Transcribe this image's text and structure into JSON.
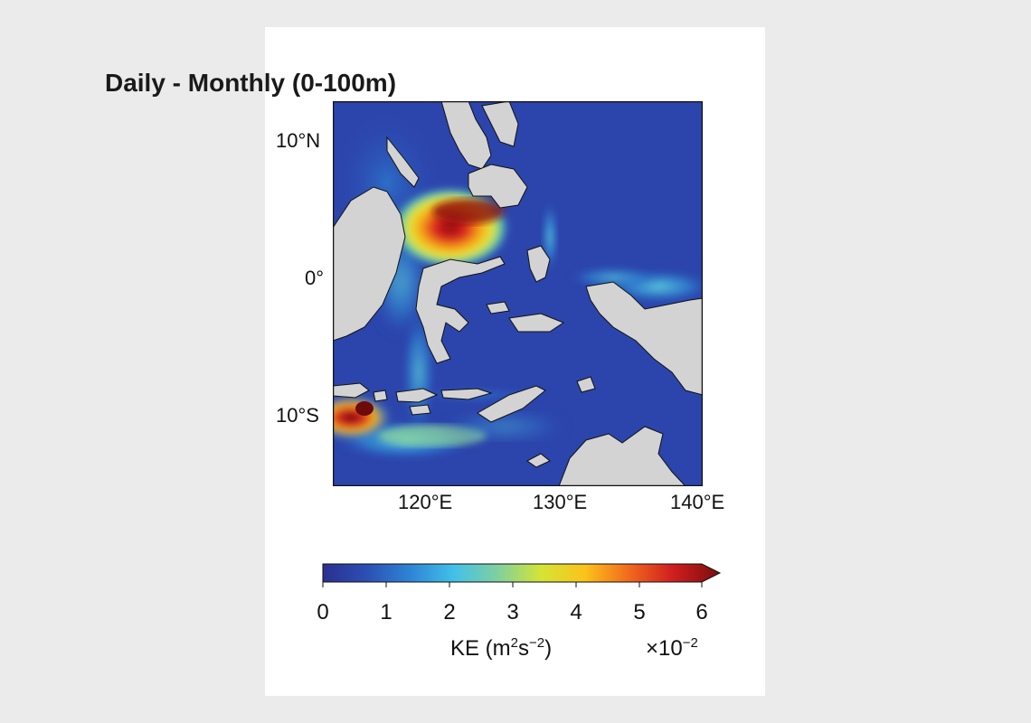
{
  "title": "Daily - Monthly (0-100m)",
  "lat_labels": [
    "10°N",
    "0°",
    "10°S"
  ],
  "lon_labels": [
    "120°E",
    "130°E",
    "140°E"
  ],
  "colorbar": {
    "ticks": [
      "0",
      "1",
      "2",
      "3",
      "4",
      "5",
      "6"
    ],
    "label_prefix": "KE (m",
    "label_sup1": "2",
    "label_mid": "s",
    "label_sup2": "−2",
    "label_suffix": ")",
    "multiplier_base": "×10",
    "multiplier_exp": "−2",
    "colors": [
      "#2b2f8f",
      "#2c4fb4",
      "#2e84d6",
      "#41c1e8",
      "#7fd0a0",
      "#d4e436",
      "#fbc31a",
      "#f26a1d",
      "#d01f1f",
      "#7c0d0d"
    ]
  },
  "map": {
    "ocean_color": "#2c45ac",
    "land_color": "#d3d3d3",
    "coast_color": "#111111",
    "max_region": "Sulawesi Sea",
    "secondary_max": "Lombok Strait"
  }
}
